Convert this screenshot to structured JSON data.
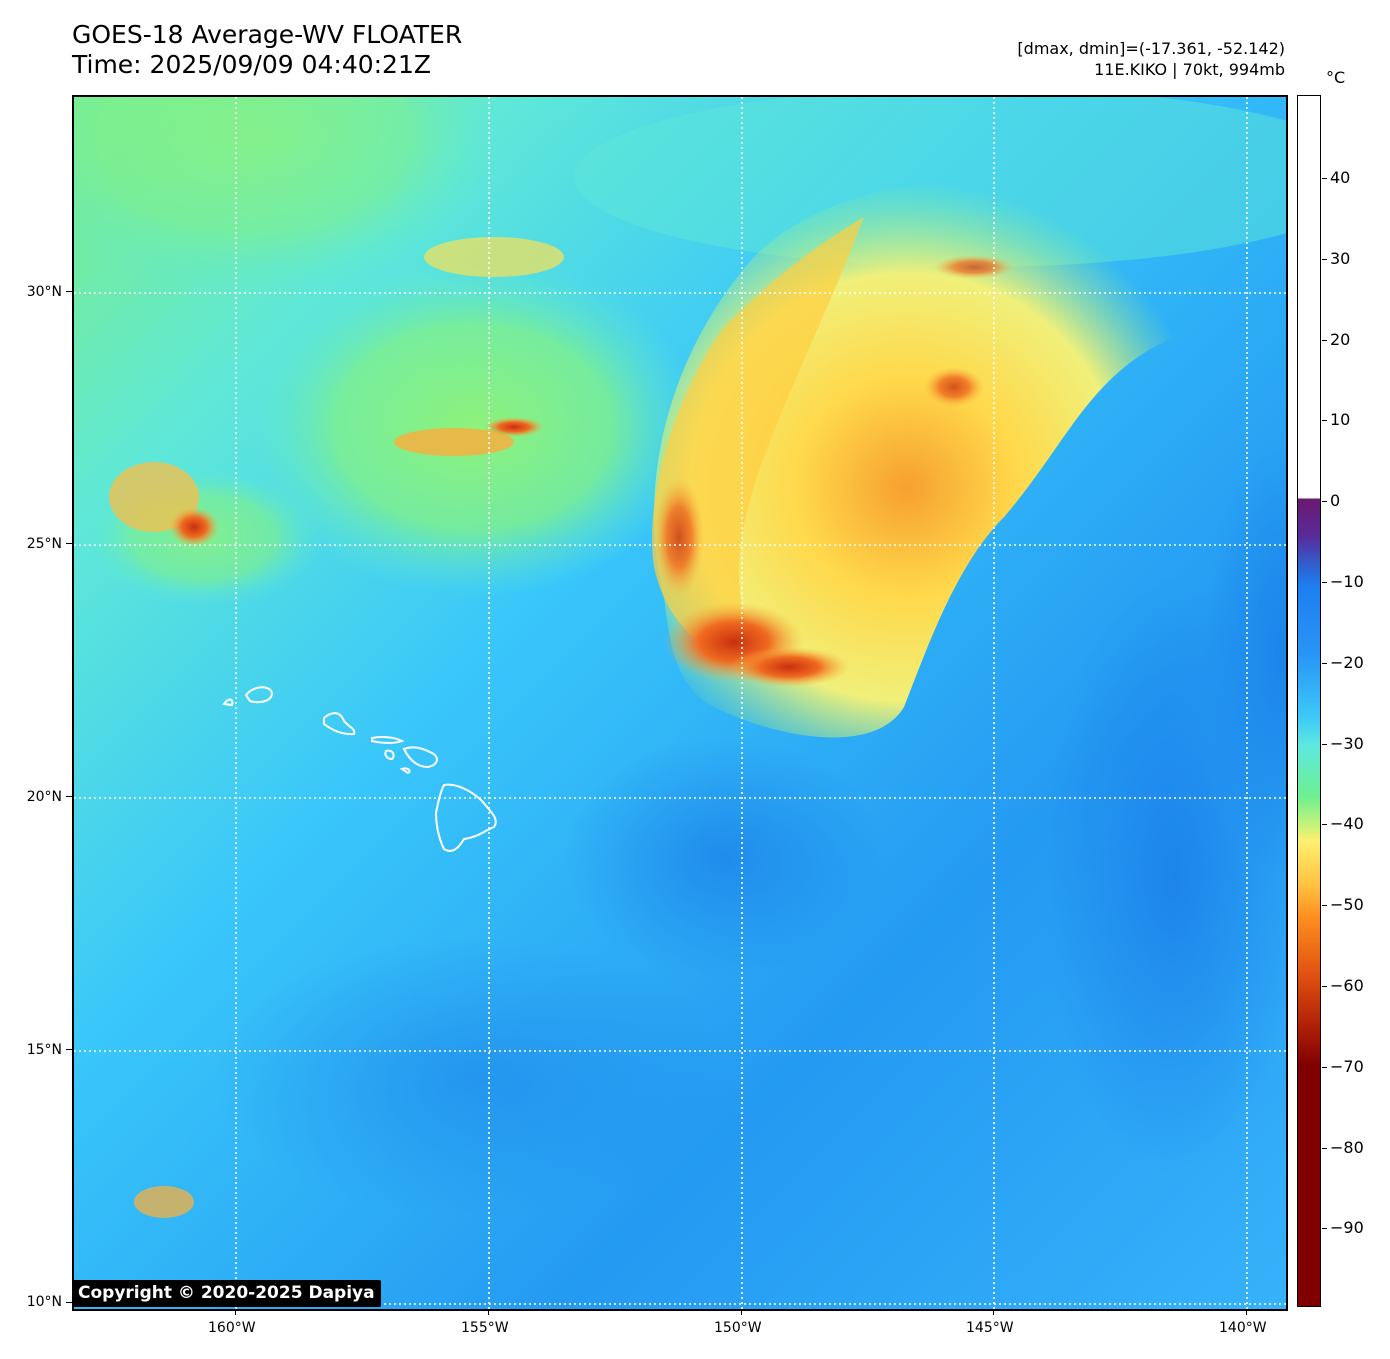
{
  "header": {
    "title_line1": "GOES-18 Average-WV FLOATER",
    "title_line2": "Time: 2025/09/09 04:40:21Z",
    "info_line1": "[dmax, dmin]=(-17.361, -52.142)",
    "info_line2": "11E.KIKO | 70kt, 994mb"
  },
  "copyright": "Copyright © 2020-2025 Dapiya",
  "colorbar": {
    "unit": "°C",
    "ticks": [
      "40",
      "30",
      "20",
      "10",
      "0",
      "−10",
      "−20",
      "−30",
      "−40",
      "−50",
      "−60",
      "−70",
      "−80",
      "−90"
    ]
  },
  "map": {
    "lat_labels": [
      "30°N",
      "25°N",
      "20°N",
      "15°N",
      "10°N"
    ],
    "lon_labels": [
      "160°W",
      "155°W",
      "150°W",
      "145°W",
      "140°W"
    ],
    "coastline_color": "#ffffff",
    "gridline_color": "#ffffff"
  },
  "colors": {
    "ocean_dry": "#2a9cf6",
    "moist": "#52e0f0",
    "high_moisture": "#86f27a",
    "cold_cloud": "#ffd84a",
    "coldest_cloud": "#e0501a"
  }
}
